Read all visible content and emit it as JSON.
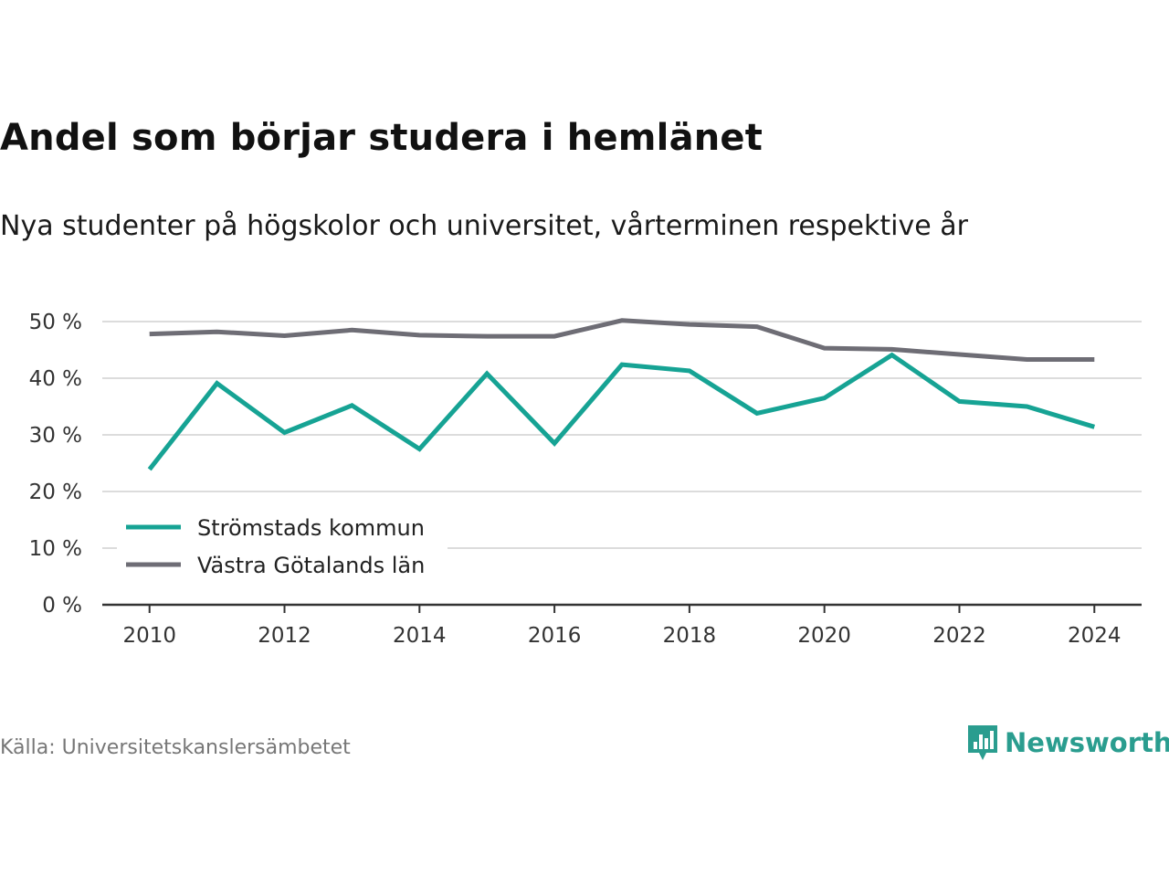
{
  "header": {
    "title": "Andel som börjar studera i hemlänet",
    "subtitle": "Nya studenter på högskolor och universitet, vårterminen respektive år"
  },
  "footer": {
    "source": "Källa: Universitetskanslersämbetet",
    "brand": "Newsworthy"
  },
  "icons": {
    "brand": "newsworthy-logo-icon"
  },
  "colors": {
    "strömstad": "#16a394",
    "vastra_gotaland": "#6e6d75",
    "grid": "#dcdcdc",
    "axis": "#333333",
    "brand": "#2a9d8f"
  },
  "chart_data": {
    "type": "line",
    "title": "Andel som börjar studera i hemlänet",
    "subtitle": "Nya studenter på högskolor och universitet, vårterminen respektive år",
    "xlabel": "",
    "ylabel": "",
    "x": [
      2010,
      2011,
      2012,
      2013,
      2014,
      2015,
      2016,
      2017,
      2018,
      2019,
      2020,
      2021,
      2022,
      2023,
      2024
    ],
    "xticks": [
      2010,
      2012,
      2014,
      2016,
      2018,
      2020,
      2022,
      2024
    ],
    "xtick_labels": [
      "2010",
      "2012",
      "2014",
      "2016",
      "2018",
      "2020",
      "2022",
      "2024"
    ],
    "yticks": [
      0,
      10,
      20,
      30,
      40,
      50
    ],
    "ytick_labels": [
      "0 %",
      "10 %",
      "20 %",
      "30 %",
      "40 %",
      "50 %"
    ],
    "ylim": [
      0,
      50
    ],
    "xlim": [
      2009.3,
      2024.7
    ],
    "grid": true,
    "legend": "bottom-left",
    "series": [
      {
        "name": "Strömstads kommun",
        "color": "#16a394",
        "values": [
          23.9,
          39.1,
          30.4,
          35.2,
          27.5,
          40.8,
          28.5,
          42.4,
          41.3,
          33.8,
          36.5,
          44.1,
          35.9,
          35.0,
          31.4
        ]
      },
      {
        "name": "Västra Götalands län",
        "color": "#6e6d75",
        "values": [
          47.8,
          48.2,
          47.5,
          48.5,
          47.6,
          47.4,
          47.4,
          50.2,
          49.5,
          49.1,
          45.3,
          45.1,
          44.2,
          43.3,
          43.3
        ]
      }
    ]
  }
}
